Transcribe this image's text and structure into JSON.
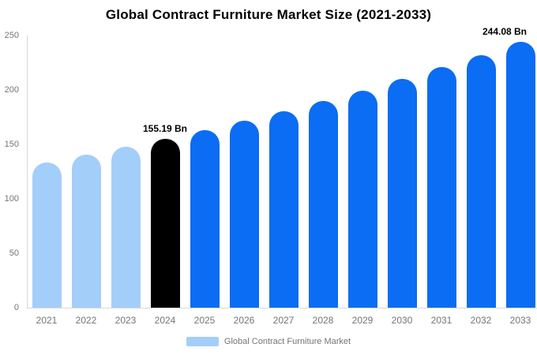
{
  "title": "Global Contract Furniture Market Size (2021-2033)",
  "legend": {
    "label": "Global Contract Furniture Market"
  },
  "colors": {
    "historical": "#A3CEFA",
    "highlight": "#000000",
    "forecast": "#0B6CF4",
    "axis_line": "#D9D9D9",
    "tick_text": "#757575",
    "value_label_text": "#000000",
    "background": "#FFFFFF"
  },
  "chart_data": {
    "type": "bar",
    "title": "Global Contract Furniture Market Size (2021-2033)",
    "categories": [
      "2021",
      "2022",
      "2023",
      "2024",
      "2025",
      "2026",
      "2027",
      "2028",
      "2029",
      "2030",
      "2031",
      "2032",
      "2033"
    ],
    "values": [
      133.4,
      140.3,
      147.6,
      155.19,
      163.2,
      171.6,
      180.5,
      189.8,
      199.6,
      209.9,
      220.8,
      232.2,
      244.08
    ],
    "bar_roles": [
      "historical",
      "historical",
      "historical",
      "highlight",
      "forecast",
      "forecast",
      "forecast",
      "forecast",
      "forecast",
      "forecast",
      "forecast",
      "forecast",
      "forecast"
    ],
    "data_labels": [
      "",
      "",
      "",
      "155.19 Bn",
      "",
      "",
      "",
      "",
      "",
      "",
      "",
      "",
      "244.08 Bn"
    ],
    "xlabel": "",
    "ylabel": "",
    "ylim": [
      0,
      250
    ],
    "yticks": [
      0,
      50,
      100,
      150,
      200,
      250
    ],
    "grid": false,
    "legend": [
      "Global Contract Furniture Market"
    ],
    "legend_position": "bottom"
  }
}
